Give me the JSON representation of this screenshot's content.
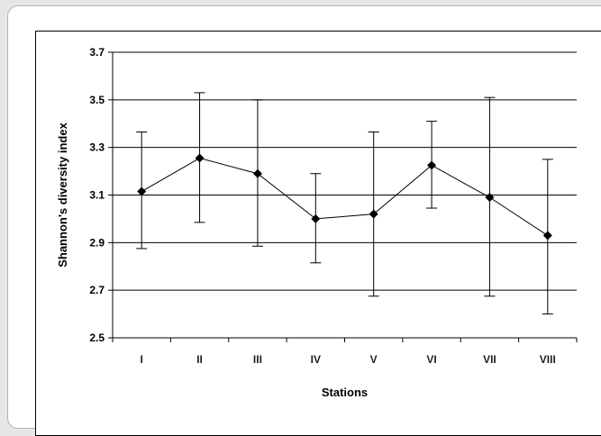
{
  "chart_data": {
    "type": "line",
    "title": "",
    "xlabel": "Stations",
    "ylabel": "Shannon's diversity index",
    "categories": [
      "I",
      "II",
      "III",
      "IV",
      "V",
      "VI",
      "VII",
      "VIII"
    ],
    "series": [
      {
        "values": [
          3.115,
          3.255,
          3.19,
          3.0,
          3.02,
          3.225,
          3.09,
          2.93
        ],
        "error_low": [
          2.875,
          2.985,
          2.885,
          2.815,
          2.675,
          3.045,
          2.675,
          2.6
        ],
        "error_high": [
          3.365,
          3.53,
          3.5,
          3.19,
          3.365,
          3.41,
          3.51,
          3.25
        ],
        "color": "#000000",
        "marker": "diamond"
      }
    ],
    "ylim": [
      2.5,
      3.7
    ],
    "yticks": [
      "2.5",
      "2.7",
      "2.9",
      "3.1",
      "3.3",
      "3.5",
      "3.7"
    ],
    "grid": "horizontal"
  }
}
